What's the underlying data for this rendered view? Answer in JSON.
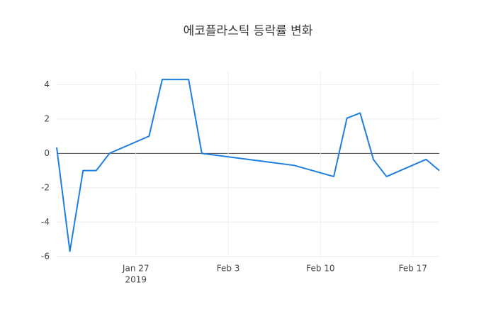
{
  "chart_data": {
    "type": "line",
    "title": "에코플라스틱 등락률 변화",
    "x": [
      "2019-01-21",
      "2019-01-22",
      "2019-01-23",
      "2019-01-24",
      "2019-01-25",
      "2019-01-28",
      "2019-01-29",
      "2019-01-31",
      "2019-02-01",
      "2019-02-08",
      "2019-02-11",
      "2019-02-12",
      "2019-02-13",
      "2019-02-14",
      "2019-02-15",
      "2019-02-18",
      "2019-02-19"
    ],
    "series": [
      {
        "color": "#1f7fe0",
        "values": [
          0.35,
          -5.7,
          -1.0,
          -1.0,
          0,
          1.0,
          4.3,
          4.3,
          0,
          -0.7,
          -1.35,
          2.05,
          2.35,
          -0.35,
          -1.35,
          -0.35,
          -1.0
        ]
      }
    ],
    "xlim": [
      "2019-01-21",
      "2019-02-19"
    ],
    "xticks": [
      {
        "value": "2019-01-27",
        "label": "Jan 27"
      },
      {
        "value": "2019-02-03",
        "label": "Feb 3"
      },
      {
        "value": "2019-02-10",
        "label": "Feb 10"
      },
      {
        "value": "2019-02-17",
        "label": "Feb 17"
      }
    ],
    "x_year_label": "2019",
    "ylim": [
      -6.05,
      4.8
    ],
    "yticks": [
      -6,
      -4,
      -2,
      0,
      2,
      4
    ],
    "grid": true
  }
}
